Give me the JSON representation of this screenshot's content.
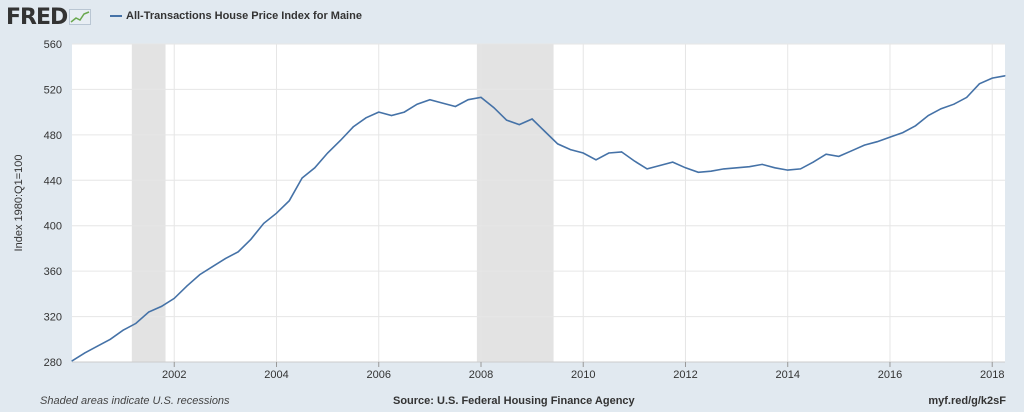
{
  "header": {
    "logo_text": "FRED",
    "title": "All-Transactions House Price Index for Maine"
  },
  "footer": {
    "left": "Shaded areas indicate U.S. recessions",
    "source": "Source: U.S. Federal Housing Finance Agency",
    "url": "myf.red/g/k2sF"
  },
  "colors": {
    "background": "#e1e9f0",
    "plot": "#ffffff",
    "series": "#4572a7",
    "recession": "#e3e3e3",
    "grid": "#e6e6e6"
  },
  "chart_data": {
    "type": "line",
    "title": "All-Transactions House Price Index for Maine",
    "ylabel": "Index 1980:Q1=100",
    "xlabel": "",
    "xlim": [
      2000.0,
      2018.25
    ],
    "ylim": [
      280,
      560
    ],
    "yticks": [
      280,
      320,
      360,
      400,
      440,
      480,
      520,
      560
    ],
    "xticks": [
      2002,
      2004,
      2006,
      2008,
      2010,
      2012,
      2014,
      2016,
      2018
    ],
    "grid": true,
    "recessions": [
      [
        2001.17,
        2001.83
      ],
      [
        2007.92,
        2009.42
      ]
    ],
    "series": [
      {
        "x": [
          2000.0,
          2000.25,
          2000.5,
          2000.75,
          2001.0,
          2001.25,
          2001.5,
          2001.75,
          2002.0,
          2002.25,
          2002.5,
          2002.75,
          2003.0,
          2003.25,
          2003.5,
          2003.75,
          2004.0,
          2004.25,
          2004.5,
          2004.75,
          2005.0,
          2005.25,
          2005.5,
          2005.75,
          2006.0,
          2006.25,
          2006.5,
          2006.75,
          2007.0,
          2007.25,
          2007.5,
          2007.75,
          2008.0,
          2008.25,
          2008.5,
          2008.75,
          2009.0,
          2009.25,
          2009.5,
          2009.75,
          2010.0,
          2010.25,
          2010.5,
          2010.75,
          2011.0,
          2011.25,
          2011.5,
          2011.75,
          2012.0,
          2012.25,
          2012.5,
          2012.75,
          2013.0,
          2013.25,
          2013.5,
          2013.75,
          2014.0,
          2014.25,
          2014.5,
          2014.75,
          2015.0,
          2015.25,
          2015.5,
          2015.75,
          2016.0,
          2016.25,
          2016.5,
          2016.75,
          2017.0,
          2017.25,
          2017.5,
          2017.75,
          2018.0,
          2018.25
        ],
        "values": [
          281,
          288,
          294,
          300,
          308,
          314,
          324,
          329,
          336,
          347,
          357,
          364,
          371,
          377,
          388,
          402,
          411,
          422,
          442,
          451,
          464,
          475,
          487,
          495,
          500,
          497,
          500,
          507,
          511,
          508,
          505,
          511,
          513,
          504,
          493,
          489,
          494,
          483,
          472,
          467,
          464,
          458,
          464,
          465,
          457,
          450,
          453,
          456,
          451,
          447,
          448,
          450,
          451,
          452,
          454,
          451,
          449,
          450,
          456,
          463,
          461,
          466,
          471,
          474,
          478,
          482,
          488,
          497,
          503,
          507,
          513,
          525,
          530,
          532
        ]
      }
    ]
  }
}
